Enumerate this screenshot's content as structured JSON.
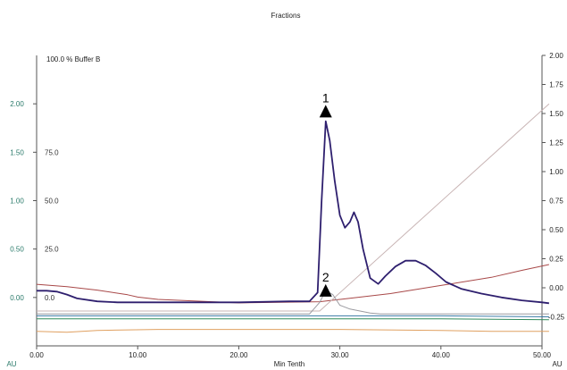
{
  "chart_data": {
    "type": "line",
    "title": "Fractions",
    "xlabel": "Min Tenth",
    "left_unit": "AU",
    "right_unit": "AU",
    "buffer_label": "100.0 % Buffer B",
    "xlim": [
      0,
      50
    ],
    "ylim_left": [
      -0.5,
      2.5
    ],
    "ylim_right": [
      -0.5,
      2.0
    ],
    "x_ticks": [
      "0.00",
      "10.00",
      "20.00",
      "30.00",
      "40.00",
      "50.00"
    ],
    "y_left_ticks": [
      "0.00",
      "0.50",
      "1.00",
      "1.50",
      "2.00"
    ],
    "y_buffer_ticks": [
      "0.0",
      "25.0",
      "50.0",
      "75.0"
    ],
    "y_right_ticks": [
      "-0.25",
      "0.00",
      "0.25",
      "0.50",
      "0.75",
      "1.00",
      "1.25",
      "1.50",
      "1.75",
      "2.00"
    ],
    "annotations": [
      {
        "label": "1",
        "x": 28.6,
        "y": 1.97
      },
      {
        "label": "2",
        "x": 28.6,
        "y": 0.12
      }
    ],
    "series": [
      {
        "color": "#2e1f6e",
        "axis": "left",
        "x": [
          0,
          1,
          2,
          3,
          4,
          6,
          8,
          10,
          12,
          15,
          20,
          25,
          27,
          27.8,
          28.2,
          28.6,
          29.0,
          29.5,
          30.0,
          30.5,
          31.0,
          31.4,
          31.8,
          32.3,
          33.0,
          33.8,
          34.5,
          35.5,
          36.5,
          37.5,
          38.5,
          39.5,
          40.5,
          42,
          44,
          46,
          48,
          50,
          50.7
        ],
        "y": [
          0.07,
          0.07,
          0.06,
          0.03,
          -0.01,
          -0.04,
          -0.05,
          -0.05,
          -0.05,
          -0.05,
          -0.05,
          -0.04,
          -0.04,
          0.05,
          1.0,
          1.82,
          1.62,
          1.2,
          0.85,
          0.72,
          0.78,
          0.88,
          0.78,
          0.5,
          0.2,
          0.14,
          0.22,
          0.32,
          0.38,
          0.38,
          0.33,
          0.25,
          0.16,
          0.09,
          0.04,
          0.0,
          -0.03,
          -0.05,
          -0.06
        ]
      },
      {
        "color": "#9a9aa0",
        "axis": "left",
        "x": [
          0,
          10,
          20,
          27,
          28,
          28.6,
          29.3,
          30,
          31,
          32,
          33,
          34,
          40,
          50.7
        ],
        "y": [
          -0.17,
          -0.17,
          -0.17,
          -0.17,
          -0.05,
          0.07,
          0.03,
          -0.08,
          -0.12,
          -0.14,
          -0.16,
          -0.17,
          -0.17,
          -0.17
        ]
      },
      {
        "color": "#c8b4b4",
        "axis": "left",
        "x": [
          0,
          28,
          50.7
        ],
        "y": [
          -0.14,
          -0.14,
          2.0
        ]
      },
      {
        "color": "#a84848",
        "axis": "right",
        "x": [
          0,
          3,
          6,
          9,
          10,
          12,
          20,
          28,
          30,
          35,
          40,
          45,
          48,
          50.7
        ],
        "y": [
          0.03,
          0.01,
          -0.02,
          -0.06,
          -0.08,
          -0.1,
          -0.13,
          -0.12,
          -0.1,
          -0.05,
          0.02,
          0.09,
          0.15,
          0.2
        ]
      },
      {
        "color": "#3a7aa6",
        "axis": "left",
        "x": [
          0,
          20,
          40,
          50.7
        ],
        "y": [
          -0.19,
          -0.19,
          -0.19,
          -0.2
        ]
      },
      {
        "color": "#2f8a5a",
        "axis": "left",
        "x": [
          0,
          25,
          40,
          50.7
        ],
        "y": [
          -0.22,
          -0.22,
          -0.22,
          -0.23
        ]
      },
      {
        "color": "#e0a060",
        "axis": "left",
        "x": [
          0,
          3,
          6,
          12,
          20,
          30,
          40,
          45,
          50.7
        ],
        "y": [
          -0.35,
          -0.36,
          -0.34,
          -0.33,
          -0.33,
          -0.33,
          -0.34,
          -0.35,
          -0.35
        ]
      }
    ]
  }
}
